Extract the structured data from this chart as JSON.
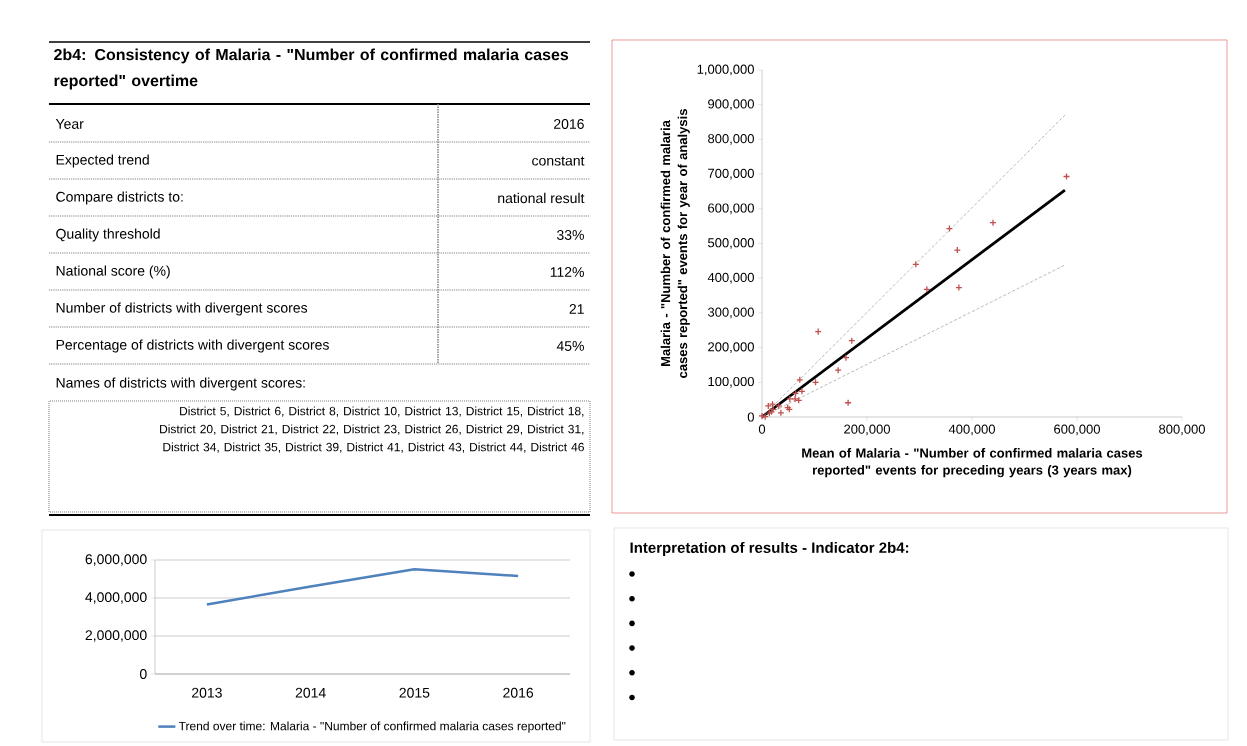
{
  "chart_data": [
    {
      "type": "other",
      "title": "2b4: Consistency of Malaria - \"Number of confirmed malaria cases reported\" overtime",
      "annotations": [
        "Year",
        "2016",
        "Expected trend",
        "constant",
        "Compare districts to:",
        "national result",
        "Quality threshold",
        "33%",
        "National score (%)",
        "112%",
        "Number of districts with divergent scores",
        "21",
        "Percentage of districts with divergent scores",
        "45%",
        "Names of districts with divergent scores:",
        "District 5, District 6, District 8, District 10, District 13, District 15, District 18, District 20, District 21, District 22, District 23, District 26, District 29, District 31, District 34, District 35, District 39, District 41, District 43, District 44, District 46"
      ]
    },
    {
      "type": "scatter",
      "xlabel": "Mean of Malaria - \"Number of confirmed malaria cases reported\" events for preceding years (3 years max)",
      "ylabel": "Malaria - \"Number of confirmed malaria cases reported\" events for year of analysis",
      "xlim": [
        0,
        800000
      ],
      "ylim": [
        0,
        1000000
      ],
      "xticks": [
        0,
        {
          "value": 200000,
          "label": "200,000"
        },
        {
          "value": 400000,
          "label": "400,000"
        },
        {
          "value": 600000,
          "label": "600,000"
        },
        {
          "value": 800000,
          "label": "800,000"
        }
      ],
      "yticks": [
        0,
        {
          "value": 100000,
          "label": "100,000"
        },
        {
          "value": 200000,
          "label": "200,000"
        },
        {
          "value": 300000,
          "label": "300,000"
        },
        {
          "value": 400000,
          "label": "400,000"
        },
        {
          "value": 500000,
          "label": "500,000"
        },
        {
          "value": 600000,
          "label": "600,000"
        },
        {
          "value": 700000,
          "label": "700,000"
        },
        {
          "value": 800000,
          "label": "800,000"
        },
        {
          "value": 900000,
          "label": "900,000"
        },
        {
          "value": 1000000,
          "label": "1,000,000"
        }
      ],
      "series": [
        {
          "type": "line",
          "color": "#a6a6a6",
          "line_style": "dashed",
          "x": [
            0,
            577000
          ],
          "values": [
            0,
            870000
          ]
        },
        {
          "type": "line",
          "color": "#a6a6a6",
          "line_style": "dashed",
          "x": [
            0,
            577000
          ],
          "values": [
            0,
            438000
          ]
        },
        {
          "type": "line",
          "color": "#000000",
          "line_style": "solid",
          "x": [
            0,
            577000
          ],
          "values": [
            0,
            654000
          ]
        },
        {
          "type": "scatter",
          "marker": "cross",
          "color": "#c0504d",
          "x": [
            580000,
            440000,
            357000,
            372000,
            375000,
            293000,
            314000,
            107000,
            171000,
            160000,
            145000,
            164000,
            72000,
            102000,
            76000,
            53000,
            63000,
            70000,
            64000,
            49000,
            52000,
            32000,
            36000,
            12000,
            20000,
            14000,
            18000,
            21000,
            0,
            6000
          ],
          "values": [
            693000,
            560000,
            543000,
            481000,
            373000,
            440000,
            368000,
            246000,
            220000,
            171000,
            135000,
            41000,
            107000,
            100000,
            74000,
            52000,
            52000,
            48000,
            68000,
            27000,
            22000,
            32000,
            12000,
            32000,
            37000,
            11000,
            15000,
            22000,
            3000,
            1000
          ]
        }
      ]
    },
    {
      "type": "line",
      "categories": [
        "2013",
        "2014",
        "2015",
        "2016"
      ],
      "ylim": [
        0,
        6000000
      ],
      "yticks": [
        0,
        {
          "value": 2000000,
          "label": "2,000,000"
        },
        {
          "value": 4000000,
          "label": "4,000,000"
        },
        {
          "value": 6000000,
          "label": "6,000,000"
        }
      ],
      "grid": "y",
      "legend": "bottom",
      "series": [
        {
          "name": "Trend over time: Malaria - \"Number of confirmed malaria cases reported\"",
          "color": "#4f81bd",
          "values": [
            3660000,
            4600000,
            5510000,
            5160000
          ]
        }
      ]
    },
    {
      "type": "other",
      "title": "Interpretation of results - Indicator 2b4:"
    }
  ]
}
